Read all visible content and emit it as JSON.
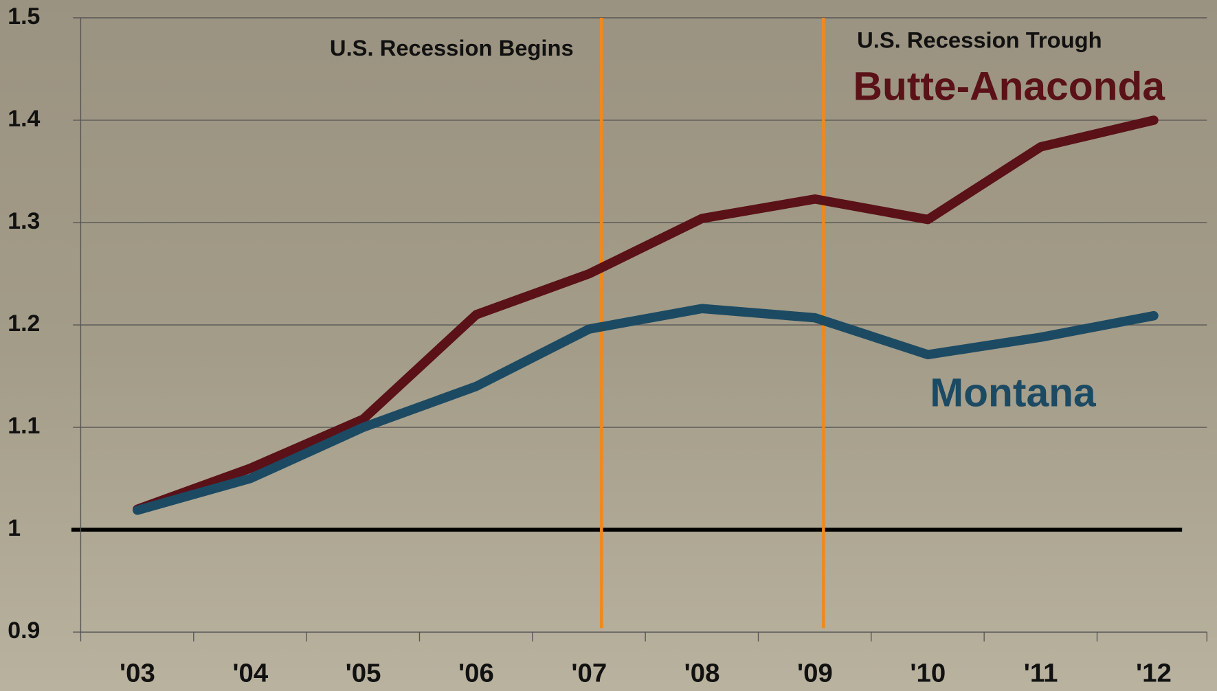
{
  "chart_data": {
    "type": "line",
    "categories": [
      "'03",
      "'04",
      "'05",
      "'06",
      "'07",
      "'08",
      "'09",
      "'10",
      "'11",
      "'12"
    ],
    "series": [
      {
        "name": "Butte-Anaconda",
        "color": "#5a1117",
        "values": [
          1.02,
          1.06,
          1.108,
          1.21,
          1.25,
          1.304,
          1.323,
          1.303,
          1.374,
          1.4
        ]
      },
      {
        "name": "Montana",
        "color": "#1c4a63",
        "values": [
          1.019,
          1.05,
          1.1,
          1.14,
          1.196,
          1.216,
          1.207,
          1.171,
          1.188,
          1.209
        ]
      }
    ],
    "annotations": [
      "U.S. Recession Begins",
      "U.S. Recession Trough"
    ],
    "ylim": [
      0.9,
      1.5
    ],
    "yticks": [
      0.9,
      1,
      1.1,
      1.2,
      1.3,
      1.4,
      1.5
    ],
    "grid": true
  }
}
